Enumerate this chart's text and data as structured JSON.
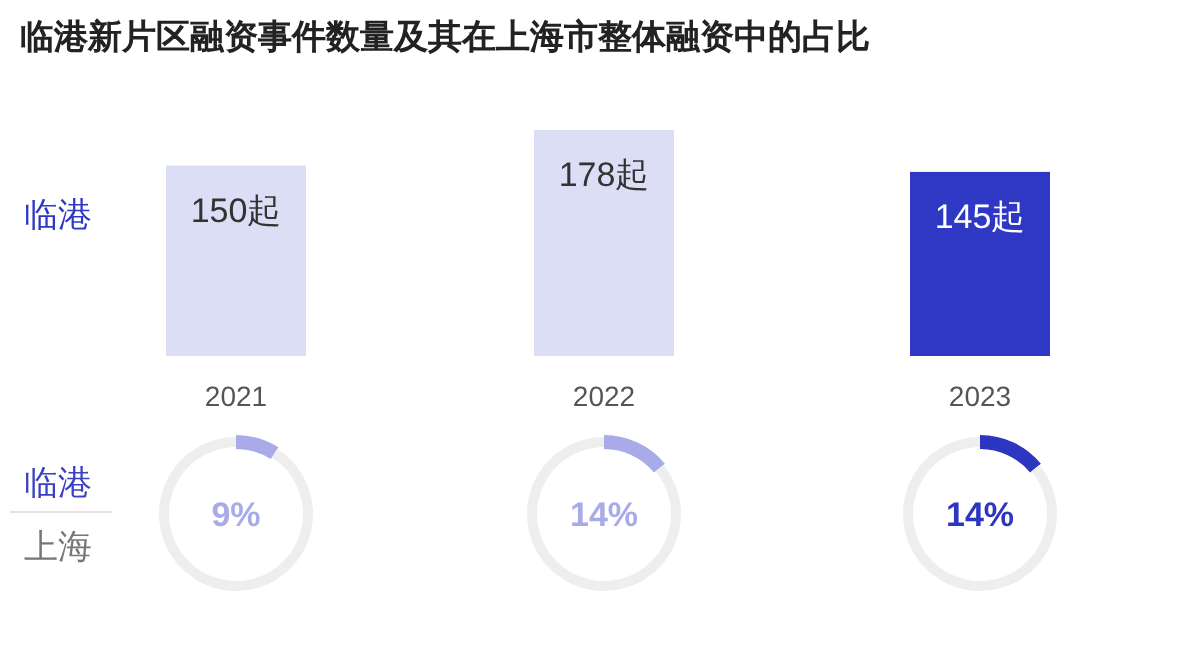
{
  "chart_data": [
    {
      "type": "bar",
      "title": "临港新片区融资事件数量及其在上海市整体融资中的占比",
      "categories": [
        "2021",
        "2022",
        "2023"
      ],
      "legend": "left",
      "series": [
        {
          "name": "临港",
          "values": [
            150,
            178,
            145
          ],
          "value_labels": [
            "150起",
            "178起",
            "145起"
          ]
        }
      ],
      "colors": [
        "#dcdef6",
        "#dcdef6",
        "#2e38c4"
      ]
    },
    {
      "type": "donut",
      "categories": [
        null,
        null
      ],
      "values": [
        9,
        91
      ],
      "colors": [
        "#a8abe8",
        "#eeeeee"
      ],
      "annotations": [
        "9%"
      ]
    },
    {
      "type": "donut",
      "categories": [
        null,
        null
      ],
      "values": [
        14,
        86
      ],
      "colors": [
        "#a8abe8",
        "#eeeeee"
      ],
      "annotations": [
        "14%"
      ]
    },
    {
      "type": "donut",
      "categories": [
        null,
        null
      ],
      "values": [
        14,
        86
      ],
      "colors": [
        "#2d36c0",
        "#eeeeee"
      ],
      "annotations": [
        "14%"
      ]
    },
    {
      "type": "other",
      "annotations": [
        "临港",
        "上海"
      ]
    }
  ]
}
